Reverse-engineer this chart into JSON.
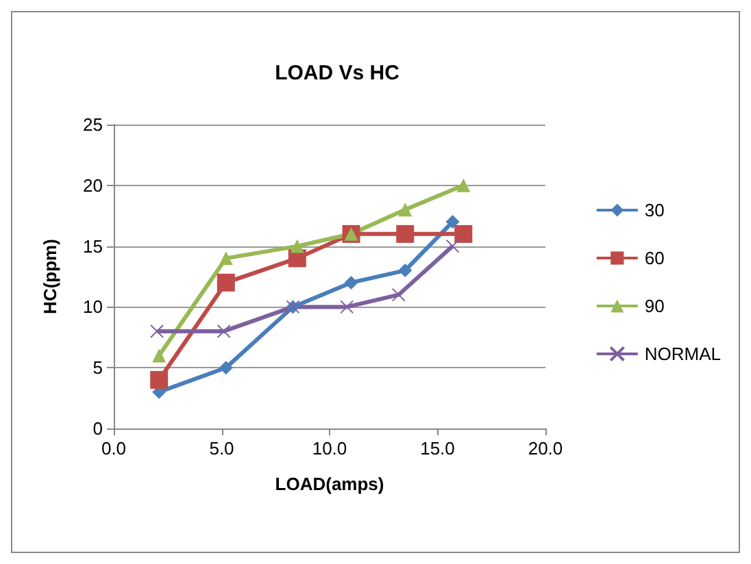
{
  "chart_data": {
    "type": "line",
    "title": "LOAD Vs HC",
    "xlabel": "LOAD(amps)",
    "ylabel": "HC(ppm)",
    "xlim": [
      0,
      20
    ],
    "xticks": [
      {
        "value": 0,
        "label": "0.0"
      },
      {
        "value": 5,
        "label": "5.0"
      },
      {
        "value": 10,
        "label": "10.0"
      },
      {
        "value": 15,
        "label": "15.0"
      },
      {
        "value": 20,
        "label": "20.0"
      }
    ],
    "ylim": [
      0,
      25
    ],
    "yticks": [
      0,
      5,
      10,
      15,
      20,
      25
    ],
    "grid": "y",
    "legend": "right",
    "series": [
      {
        "name": "30",
        "color": "#4a7ebb",
        "marker": "diamond",
        "x": [
          2.1,
          5.2,
          8.3,
          11.0,
          13.5,
          15.7
        ],
        "values": [
          3,
          5,
          10,
          12,
          13,
          17
        ]
      },
      {
        "name": "60",
        "color": "#be4b48",
        "marker": "square",
        "x": [
          2.1,
          5.2,
          8.5,
          11.0,
          13.5,
          16.2
        ],
        "values": [
          4,
          12,
          14,
          16,
          16,
          16
        ]
      },
      {
        "name": "90",
        "color": "#98b954",
        "marker": "triangle",
        "x": [
          2.1,
          5.2,
          8.5,
          11.0,
          13.5,
          16.2
        ],
        "values": [
          6,
          14,
          15,
          16,
          18,
          20
        ]
      },
      {
        "name": "NORMAL",
        "color": "#7d60a0",
        "marker": "cross",
        "x": [
          2.0,
          5.1,
          8.3,
          10.8,
          13.2,
          15.7
        ],
        "values": [
          8,
          8,
          10,
          10,
          11,
          15
        ]
      }
    ]
  }
}
